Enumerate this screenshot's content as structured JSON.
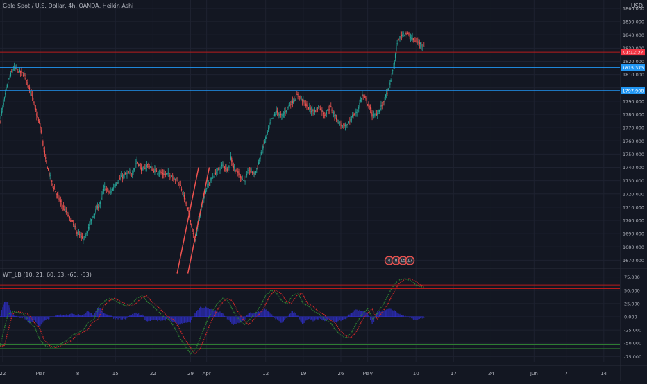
{
  "title": "Gold Spot / U.S. Dollar, 4h, OANDA, Heikin Ashi",
  "currency": "USD",
  "indicator_title": "WT_LB (10, 21, 60, 53, -60, -53)",
  "colors": {
    "background": "#131722",
    "grid": "#1e2230",
    "up": "#26a69a",
    "down": "#ef5350",
    "hline_blue": "#2196f3",
    "hline_red": "#b71c1c",
    "axis_text": "#b2b5be",
    "wt1": "#2e7d32",
    "wt2": "#c62828",
    "histogram": "#3030d0"
  },
  "chart_data": [
    {
      "type": "candlestick",
      "name": "price",
      "ylim": [
        1665,
        1860
      ],
      "price_ticks": [
        "1860.000",
        "1850.000",
        "1840.000",
        "1830.000",
        "1820.000",
        "1810.000",
        "1800.000",
        "1790.000",
        "1780.000",
        "1770.000",
        "1760.000",
        "1750.000",
        "1740.000",
        "1730.000",
        "1720.000",
        "1710.000",
        "1700.000",
        "1690.000",
        "1680.000",
        "1670.000"
      ],
      "price_tick_values": [
        1860,
        1850,
        1840,
        1830,
        1820,
        1810,
        1800,
        1790,
        1780,
        1770,
        1760,
        1750,
        1740,
        1730,
        1720,
        1710,
        1700,
        1690,
        1680,
        1670
      ],
      "x_ticks": [
        "22",
        "Mar",
        "8",
        "15",
        "22",
        "29",
        "Apr",
        "12",
        "19",
        "26",
        "May",
        "10",
        "17",
        "24",
        "Jun",
        "7",
        "14"
      ],
      "x_tick_days": [
        -7,
        0,
        7,
        14,
        21,
        28,
        31,
        42,
        49,
        56,
        61,
        70,
        77,
        84,
        92,
        98,
        105
      ],
      "xlim_days": [
        -7.5,
        108
      ],
      "last_day": 71.5,
      "key_points": [
        [
          -7.5,
          1775
        ],
        [
          -6,
          1805
        ],
        [
          -5,
          1815
        ],
        [
          -3,
          1810
        ],
        [
          -2,
          1800
        ],
        [
          -1,
          1785
        ],
        [
          0,
          1770
        ],
        [
          1,
          1745
        ],
        [
          2,
          1730
        ],
        [
          3,
          1720
        ],
        [
          4,
          1712
        ],
        [
          5,
          1705
        ],
        [
          6,
          1698
        ],
        [
          7,
          1690
        ],
        [
          8,
          1685
        ],
        [
          9,
          1695
        ],
        [
          10,
          1705
        ],
        [
          11,
          1712
        ],
        [
          12,
          1725
        ],
        [
          13,
          1720
        ],
        [
          14,
          1728
        ],
        [
          15,
          1732
        ],
        [
          16,
          1735
        ],
        [
          17,
          1735
        ],
        [
          18,
          1745
        ],
        [
          19,
          1738
        ],
        [
          20,
          1742
        ],
        [
          21,
          1738
        ],
        [
          22,
          1737
        ],
        [
          23,
          1735
        ],
        [
          24,
          1735
        ],
        [
          25,
          1732
        ],
        [
          26,
          1728
        ],
        [
          27,
          1715
        ],
        [
          28,
          1700
        ],
        [
          28.8,
          1682
        ],
        [
          29.5,
          1700
        ],
        [
          30.5,
          1718
        ],
        [
          31,
          1725
        ],
        [
          32,
          1732
        ],
        [
          33,
          1738
        ],
        [
          34,
          1742
        ],
        [
          35,
          1738
        ],
        [
          35.5,
          1748
        ],
        [
          36,
          1740
        ],
        [
          37,
          1735
        ],
        [
          38,
          1730
        ],
        [
          39,
          1738
        ],
        [
          40,
          1735
        ],
        [
          41,
          1748
        ],
        [
          42,
          1762
        ],
        [
          43,
          1775
        ],
        [
          44,
          1782
        ],
        [
          45,
          1778
        ],
        [
          46,
          1785
        ],
        [
          47,
          1790
        ],
        [
          48,
          1795
        ],
        [
          49,
          1790
        ],
        [
          50,
          1785
        ],
        [
          51,
          1782
        ],
        [
          52,
          1786
        ],
        [
          53,
          1780
        ],
        [
          54,
          1786
        ],
        [
          55,
          1778
        ],
        [
          56,
          1772
        ],
        [
          57,
          1770
        ],
        [
          58,
          1778
        ],
        [
          59,
          1782
        ],
        [
          60,
          1795
        ],
        [
          61,
          1788
        ],
        [
          62,
          1778
        ],
        [
          63,
          1782
        ],
        [
          64,
          1790
        ],
        [
          65,
          1800
        ],
        [
          66,
          1820
        ],
        [
          66.5,
          1835
        ],
        [
          67.3,
          1840
        ],
        [
          68,
          1842
        ],
        [
          69,
          1838
        ],
        [
          70,
          1835
        ],
        [
          71.5,
          1832
        ]
      ],
      "horizontal_levels": [
        {
          "value": 1827,
          "label": "01:12:37",
          "color": "red"
        },
        {
          "value": 1815.373,
          "label": "1815.373",
          "color": "blue"
        },
        {
          "value": 1797.908,
          "label": "1797.908",
          "color": "blue"
        }
      ],
      "trend_lines": [
        {
          "from": [
            25.5,
            1660
          ],
          "to": [
            29.5,
            1740
          ]
        },
        {
          "from": [
            27.5,
            1660
          ],
          "to": [
            31.5,
            1740
          ]
        }
      ],
      "badge_day": 65,
      "badge_labels": [
        "4",
        "8",
        "15",
        "17"
      ]
    },
    {
      "type": "line",
      "name": "WT_LB",
      "ylim": [
        -85,
        85
      ],
      "y_ticks": [
        "75.000",
        "50.000",
        "25.000",
        "0.000",
        "-25.000",
        "-50.000",
        "-75.000"
      ],
      "y_tick_values": [
        75,
        50,
        25,
        0,
        -25,
        -50,
        -75
      ],
      "levels": [
        60,
        53,
        -53,
        -60
      ],
      "wt_key_points": [
        [
          -7.5,
          -55
        ],
        [
          -6,
          5
        ],
        [
          -5,
          10
        ],
        [
          -3,
          5
        ],
        [
          -2,
          -10
        ],
        [
          -1,
          -20
        ],
        [
          0,
          -45
        ],
        [
          1,
          -55
        ],
        [
          2,
          -58
        ],
        [
          3,
          -55
        ],
        [
          4,
          -50
        ],
        [
          5,
          -45
        ],
        [
          6,
          -35
        ],
        [
          7,
          -30
        ],
        [
          8,
          -25
        ],
        [
          9,
          -10
        ],
        [
          10,
          -5
        ],
        [
          11,
          20
        ],
        [
          12,
          30
        ],
        [
          13,
          35
        ],
        [
          14,
          30
        ],
        [
          15,
          25
        ],
        [
          16,
          20
        ],
        [
          17,
          25
        ],
        [
          18,
          35
        ],
        [
          19,
          40
        ],
        [
          20,
          28
        ],
        [
          21,
          20
        ],
        [
          22,
          10
        ],
        [
          23,
          0
        ],
        [
          24,
          -5
        ],
        [
          25,
          -20
        ],
        [
          26,
          -40
        ],
        [
          27,
          -55
        ],
        [
          28,
          -70
        ],
        [
          29,
          -60
        ],
        [
          30,
          -35
        ],
        [
          31,
          -10
        ],
        [
          32,
          10
        ],
        [
          33,
          25
        ],
        [
          34,
          35
        ],
        [
          35,
          30
        ],
        [
          36,
          10
        ],
        [
          37,
          -5
        ],
        [
          38,
          -15
        ],
        [
          39,
          -5
        ],
        [
          40,
          5
        ],
        [
          41,
          20
        ],
        [
          42,
          40
        ],
        [
          43,
          50
        ],
        [
          44,
          45
        ],
        [
          45,
          30
        ],
        [
          46,
          25
        ],
        [
          47,
          40
        ],
        [
          48,
          45
        ],
        [
          49,
          25
        ],
        [
          50,
          20
        ],
        [
          51,
          10
        ],
        [
          52,
          5
        ],
        [
          53,
          -5
        ],
        [
          54,
          -10
        ],
        [
          55,
          -25
        ],
        [
          56,
          -35
        ],
        [
          57,
          -40
        ],
        [
          58,
          -30
        ],
        [
          59,
          -10
        ],
        [
          60,
          5
        ],
        [
          61,
          15
        ],
        [
          62,
          -5
        ],
        [
          63,
          10
        ],
        [
          64,
          25
        ],
        [
          65,
          45
        ],
        [
          66,
          62
        ],
        [
          67,
          70
        ],
        [
          68,
          72
        ],
        [
          69,
          68
        ],
        [
          70,
          60
        ],
        [
          71.5,
          55
        ]
      ]
    }
  ]
}
